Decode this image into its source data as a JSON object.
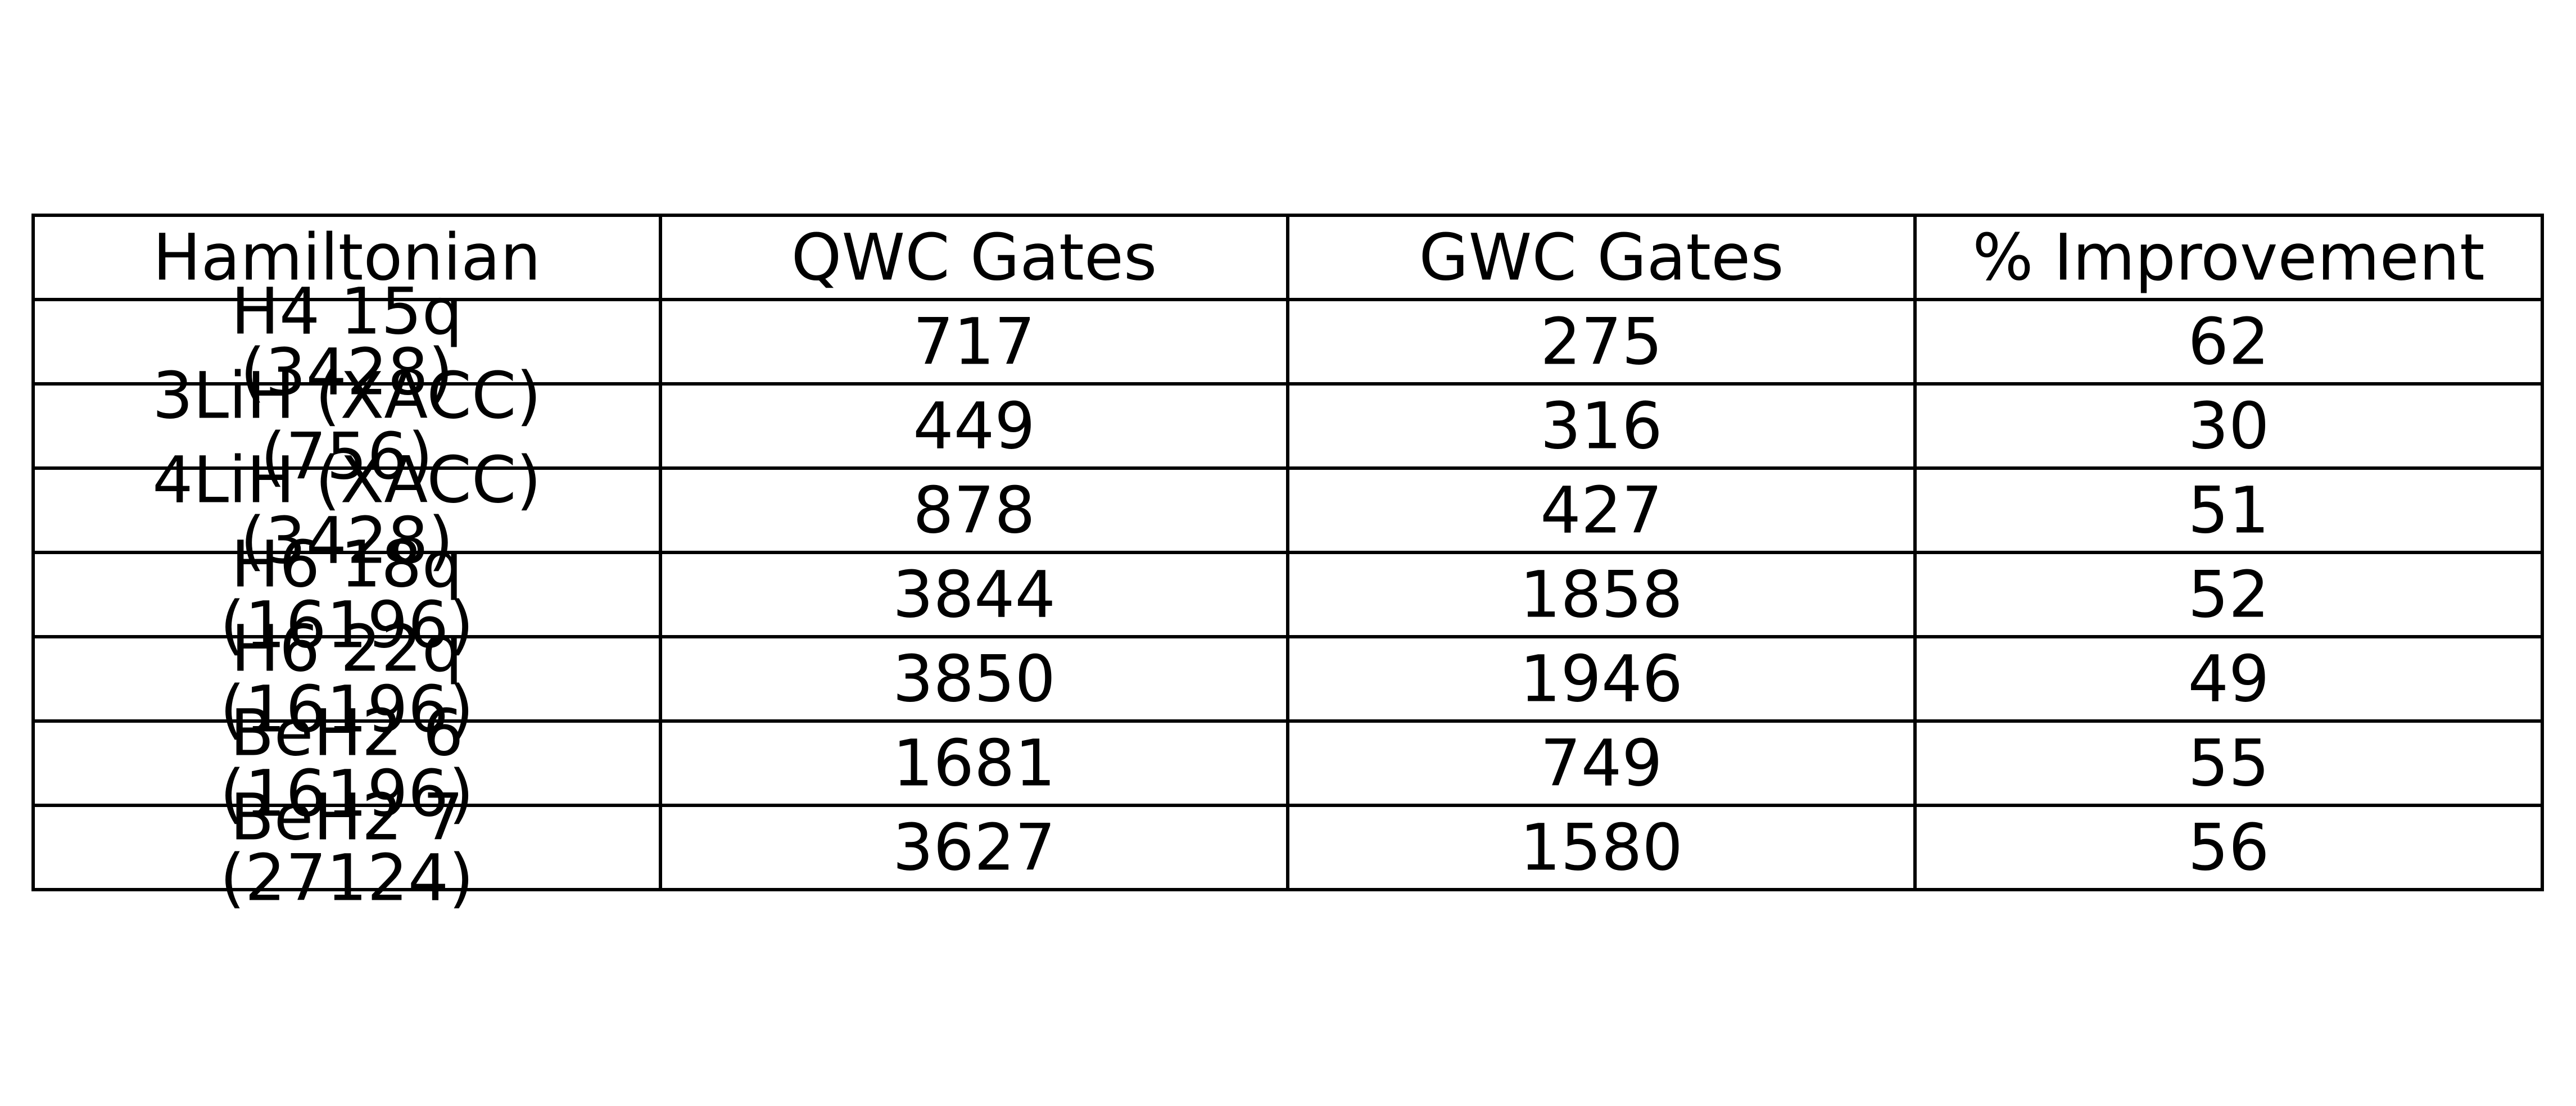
{
  "chart_data": {
    "type": "table",
    "columns": [
      "Hamiltonian",
      "QWC Gates",
      "GWC Gates",
      "% Improvement"
    ],
    "rows": [
      {
        "hamiltonian": [
          "H4 15q",
          "(3428)"
        ],
        "qwc_gates": "717",
        "gwc_gates": "275",
        "improvement": "62"
      },
      {
        "hamiltonian": [
          "3LiH (XACC)",
          "(756)"
        ],
        "qwc_gates": "449",
        "gwc_gates": "316",
        "improvement": "30"
      },
      {
        "hamiltonian": [
          "4LiH (XACC)",
          "(3428)"
        ],
        "qwc_gates": "878",
        "gwc_gates": "427",
        "improvement": "51"
      },
      {
        "hamiltonian": [
          "H6 18q",
          "(16196)"
        ],
        "qwc_gates": "3844",
        "gwc_gates": "1858",
        "improvement": "52"
      },
      {
        "hamiltonian": [
          "H6 22q",
          "(16196)"
        ],
        "qwc_gates": "3850",
        "gwc_gates": "1946",
        "improvement": "49"
      },
      {
        "hamiltonian": [
          "BeH2 6",
          "(16196)"
        ],
        "qwc_gates": "1681",
        "gwc_gates": "749",
        "improvement": "55"
      },
      {
        "hamiltonian": [
          "BeH2 7",
          "(27124)"
        ],
        "qwc_gates": "3627",
        "gwc_gates": "1580",
        "improvement": "56"
      }
    ]
  }
}
